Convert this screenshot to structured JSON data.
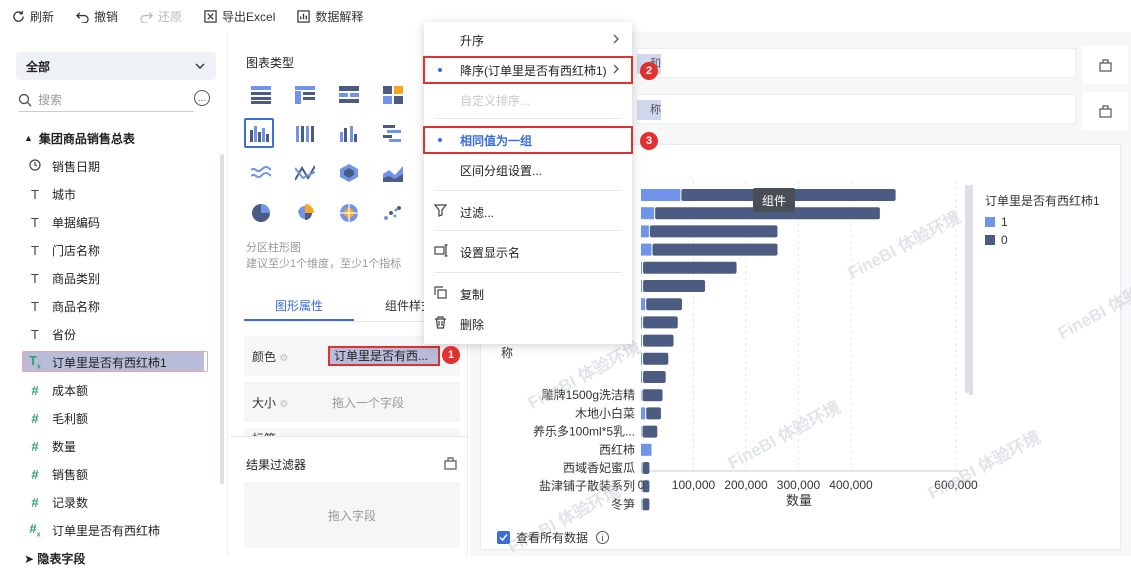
{
  "toolbar": {
    "refresh": "刷新",
    "undo": "撤销",
    "redo": "还原",
    "export": "导出Excel",
    "explain": "数据解释"
  },
  "left": {
    "scope": "全部",
    "search_placeholder": "搜索",
    "more_icon": "…",
    "group": "集团商品销售总表",
    "fields": [
      {
        "icon": "clock-icon",
        "label": "销售日期"
      },
      {
        "icon": "text-icon",
        "label": "城市"
      },
      {
        "icon": "text-icon",
        "label": "单据编码"
      },
      {
        "icon": "text-icon",
        "label": "门店名称"
      },
      {
        "icon": "text-icon",
        "label": "商品类别"
      },
      {
        "icon": "text-icon",
        "label": "商品名称"
      },
      {
        "icon": "text-icon",
        "label": "省份"
      },
      {
        "icon": "calc-text-icon",
        "label": "订单里是否有西红柿1"
      },
      {
        "icon": "number-icon",
        "label": "成本额"
      },
      {
        "icon": "number-icon",
        "label": "毛利额"
      },
      {
        "icon": "number-icon",
        "label": "数量"
      },
      {
        "icon": "number-icon",
        "label": "销售额"
      },
      {
        "icon": "number-icon",
        "label": "记录数"
      },
      {
        "icon": "calc-number-icon",
        "label": "订单里是否有西红柿"
      }
    ],
    "next_group": "➤ 隐表字段"
  },
  "middle": {
    "chart_type_title": "图表类型",
    "chart_desc": "分区柱形图",
    "chart_hint": "建议至少1个维度，至少1个指标",
    "tab_graph": "图形属性",
    "tab_style": "组件样式",
    "color_label": "颜色",
    "color_value": "订单里是否有西...",
    "size_label": "大小",
    "size_placeholder": "拖入一个字段",
    "label_label": "标签",
    "result_filter": "结果过滤器",
    "drop_field": "拖入字段"
  },
  "menu": {
    "asc": "升序",
    "desc": "降序(订单里是否有西红柿1)",
    "custom": "自定义排序...",
    "same_value": "相同值为一组",
    "interval": "区间分组设置...",
    "filter": "过滤...",
    "display_name": "设置显示名",
    "copy": "复制",
    "delete": "删除"
  },
  "badges": [
    "1",
    "2",
    "3"
  ],
  "tooltip": "组件",
  "right": {
    "row1_pill": "和",
    "row2_pill": "称"
  },
  "watermark": "FineBI 体验环境",
  "footer": {
    "view_all": "查看所有数据"
  },
  "chart_data": {
    "type": "bar",
    "orientation": "horizontal",
    "stacked": true,
    "y_axis_label": "称",
    "x_axis_label": "数量",
    "x_ticks": [
      "0",
      "100,000",
      "200,000",
      "300,000",
      "400,000",
      "600,000"
    ],
    "legend_title": "订单里是否有西红柿1",
    "legend": [
      {
        "name": "1",
        "color": "#6f94e9"
      },
      {
        "name": "0",
        "color": "#4c5b82"
      }
    ],
    "categories": [
      "",
      "",
      "",
      "",
      "",
      "",
      "",
      "",
      "",
      "",
      "",
      "雕牌1500g洗洁精",
      "木地小白菜",
      "养乐多100ml*5乳...",
      "西红柿",
      "西域香妃蜜瓜",
      "盐津铺子散装系列",
      "冬笋"
    ],
    "series": [
      {
        "name": "1",
        "values": [
          75000,
          25000,
          15000,
          20000,
          2000,
          2000,
          8000,
          2000,
          2000,
          2000,
          2000,
          1000,
          8000,
          1000,
          20000,
          1000,
          1000,
          1000
        ]
      },
      {
        "name": "0",
        "values": [
          410000,
          430000,
          245000,
          240000,
          180000,
          120000,
          70000,
          68000,
          60000,
          50000,
          45000,
          40000,
          30000,
          30000,
          0,
          15000,
          15000,
          15000
        ]
      }
    ]
  }
}
